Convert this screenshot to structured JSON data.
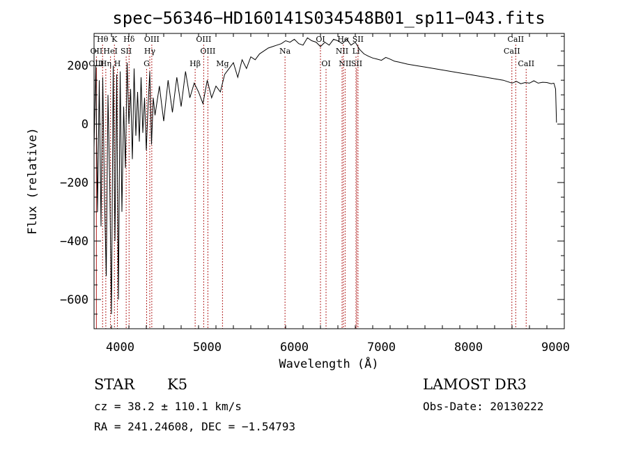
{
  "chart_data": {
    "type": "line",
    "title": "spec−56346−HD160141S034548B01_sp11−043.fits",
    "xlabel": "Wavelength (Å)",
    "ylabel": "Flux (relative)",
    "xlim": [
      3700,
      9100
    ],
    "ylim": [
      -700,
      310
    ],
    "xticks": [
      4000,
      5000,
      6000,
      7000,
      8000,
      9000
    ],
    "xtick_labels": [
      "4000",
      "5000",
      "6000",
      "7000",
      "8000",
      "9000"
    ],
    "yticks": [
      -600,
      -400,
      -200,
      0,
      200
    ],
    "ytick_labels": [
      "−600",
      "−400",
      "−200",
      "0",
      "200"
    ],
    "series": [
      {
        "name": "flux",
        "x": [
          3700,
          3720,
          3740,
          3760,
          3780,
          3800,
          3820,
          3840,
          3860,
          3880,
          3900,
          3920,
          3940,
          3960,
          3980,
          4000,
          4020,
          4040,
          4060,
          4080,
          4100,
          4120,
          4140,
          4160,
          4180,
          4200,
          4220,
          4240,
          4260,
          4280,
          4300,
          4320,
          4340,
          4360,
          4380,
          4400,
          4450,
          4500,
          4550,
          4600,
          4650,
          4700,
          4750,
          4800,
          4850,
          4900,
          4950,
          5000,
          5050,
          5100,
          5150,
          5200,
          5250,
          5300,
          5350,
          5400,
          5450,
          5500,
          5550,
          5600,
          5650,
          5700,
          5750,
          5800,
          5850,
          5900,
          5950,
          6000,
          6050,
          6100,
          6150,
          6200,
          6250,
          6300,
          6350,
          6400,
          6450,
          6500,
          6550,
          6600,
          6650,
          6700,
          6750,
          6800,
          6850,
          6900,
          6950,
          7000,
          7050,
          7100,
          7150,
          7200,
          7300,
          7400,
          7500,
          7600,
          7700,
          7800,
          7900,
          8000,
          8100,
          8200,
          8300,
          8400,
          8450,
          8500,
          8550,
          8600,
          8650,
          8700,
          8750,
          8800,
          8850,
          8900,
          8950,
          8980,
          9000,
          9010
        ],
        "y": [
          -80,
          200,
          -300,
          150,
          -350,
          160,
          -250,
          -520,
          100,
          -200,
          -650,
          200,
          -400,
          170,
          -600,
          180,
          -300,
          60,
          -150,
          210,
          0,
          120,
          -120,
          190,
          -40,
          110,
          -60,
          160,
          -30,
          90,
          -90,
          60,
          180,
          -70,
          90,
          30,
          130,
          10,
          150,
          40,
          160,
          60,
          180,
          90,
          140,
          110,
          70,
          150,
          90,
          130,
          110,
          170,
          190,
          210,
          160,
          220,
          190,
          230,
          220,
          240,
          250,
          260,
          265,
          270,
          275,
          285,
          280,
          290,
          275,
          270,
          295,
          285,
          280,
          265,
          280,
          270,
          290,
          285,
          275,
          290,
          270,
          280,
          255,
          240,
          232,
          226,
          222,
          218,
          228,
          222,
          215,
          212,
          205,
          200,
          195,
          190,
          185,
          180,
          175,
          170,
          165,
          160,
          155,
          150,
          145,
          140,
          146,
          138,
          142,
          140,
          148,
          140,
          143,
          142,
          138,
          140,
          120,
          5
        ]
      }
    ],
    "emission_lines": [
      {
        "label": "Hθ",
        "wave": 3798,
        "row": 0
      },
      {
        "label": "K",
        "wave": 3934,
        "row": 0
      },
      {
        "label": "Hδ",
        "wave": 4102,
        "row": 0
      },
      {
        "label": "OIII",
        "wave": 4363,
        "row": 0
      },
      {
        "label": "OIII",
        "wave": 4959,
        "row": 0
      },
      {
        "label": "OI",
        "wave": 6300,
        "row": 0
      },
      {
        "label": "Hα",
        "wave": 6563,
        "row": 0
      },
      {
        "label": "SII",
        "wave": 6731,
        "row": 0
      },
      {
        "label": "CaII",
        "wave": 8542,
        "row": 0
      },
      {
        "label": "OII",
        "wave": 3727,
        "row": 1
      },
      {
        "label": "HeI",
        "wave": 3889,
        "row": 1
      },
      {
        "label": "SII",
        "wave": 4069,
        "row": 1
      },
      {
        "label": "Hγ",
        "wave": 4340,
        "row": 1
      },
      {
        "label": "OIII",
        "wave": 5007,
        "row": 1
      },
      {
        "label": "Na",
        "wave": 5893,
        "row": 1
      },
      {
        "label": "NII",
        "wave": 6548,
        "row": 1
      },
      {
        "label": "Li",
        "wave": 6708,
        "row": 1
      },
      {
        "label": "CaII",
        "wave": 8498,
        "row": 1
      },
      {
        "label": "OIII",
        "wave": 3727,
        "row": 2
      },
      {
        "label": "Hη",
        "wave": 3835,
        "row": 2
      },
      {
        "label": "H",
        "wave": 3968,
        "row": 2
      },
      {
        "label": "G",
        "wave": 4304,
        "row": 2
      },
      {
        "label": "Hβ",
        "wave": 4861,
        "row": 2
      },
      {
        "label": "Mg",
        "wave": 5175,
        "row": 2
      },
      {
        "label": "OI",
        "wave": 6364,
        "row": 2
      },
      {
        "label": "NII",
        "wave": 6583,
        "row": 2
      },
      {
        "label": "SII",
        "wave": 6716,
        "row": 2
      },
      {
        "label": "CaII",
        "wave": 8662,
        "row": 2
      }
    ]
  },
  "info": {
    "object_class": "STAR",
    "subclass": "K5",
    "survey": "LAMOST DR3",
    "cz": "cz = 38.2 ± 110.1 km/s",
    "obs_date": "Obs-Date: 20130222",
    "coords": "RA = 241.24608, DEC =  −1.54793"
  },
  "colors": {
    "spectrum": "#000000",
    "line_markers": "#b22222",
    "axes": "#000000"
  }
}
